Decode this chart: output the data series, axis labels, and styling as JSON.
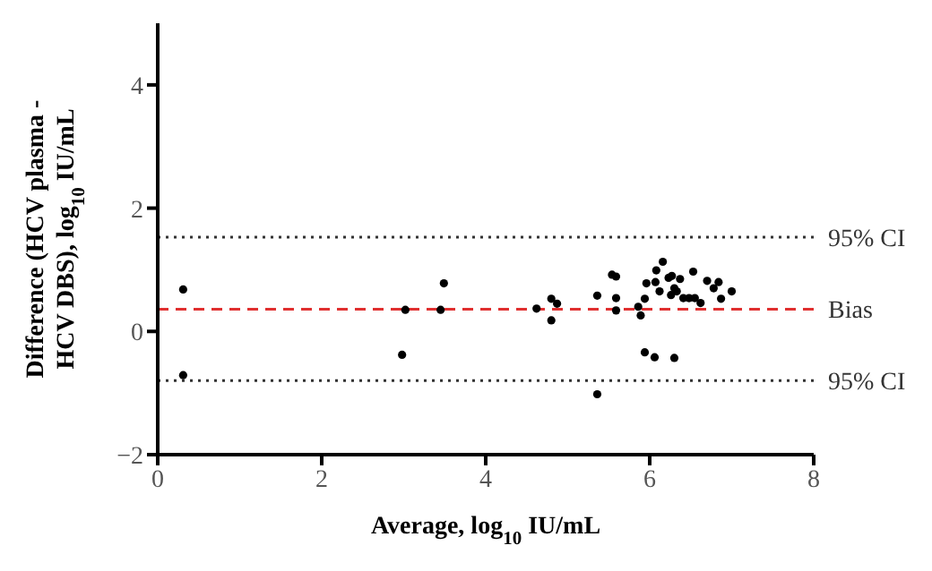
{
  "chart_data": {
    "type": "scatter",
    "xlabel": "Average, log$_{10}$ IU/mL",
    "ylabel": "Difference (HCV plasma - HCV DBS), log$_{10}$ IU/mL",
    "series": [
      {
        "color": "#000000",
        "x": [
          0.31,
          0.31,
          2.98,
          3.02,
          3.45,
          3.49,
          4.62,
          4.8,
          4.8,
          4.87,
          5.36,
          5.36,
          5.54,
          5.59,
          5.59,
          5.59,
          5.86,
          5.89,
          5.94,
          5.94,
          6.06,
          6.3,
          5.96,
          6.08,
          6.07,
          6.16,
          6.12,
          6.23,
          6.27,
          6.37,
          6.3,
          6.26,
          6.33,
          6.41,
          6.48,
          6.53,
          6.55,
          6.62,
          6.7,
          6.78,
          6.84,
          6.87,
          7.0
        ],
        "values": [
          0.68,
          -0.71,
          -0.38,
          0.35,
          0.35,
          0.78,
          0.37,
          0.18,
          0.53,
          0.45,
          0.58,
          -1.02,
          0.92,
          0.89,
          0.54,
          0.34,
          0.4,
          0.26,
          0.53,
          -0.34,
          -0.42,
          -0.43,
          0.78,
          0.99,
          0.8,
          1.13,
          0.65,
          0.87,
          0.9,
          0.85,
          0.7,
          0.59,
          0.65,
          0.54,
          0.54,
          0.97,
          0.54,
          0.46,
          0.82,
          0.7,
          0.8,
          0.53,
          0.65
        ]
      }
    ],
    "xlim": [
      0,
      8
    ],
    "xticks": [
      0,
      2,
      4,
      6,
      8
    ],
    "ylim": [
      -2,
      5
    ],
    "yticks": [
      -2,
      0,
      2,
      4
    ],
    "grid": false,
    "marker": "circle",
    "ref_lines": [
      {
        "axis": "y",
        "value": 1.53,
        "label": "95% CI",
        "color": "#333333",
        "line_style": "dotted"
      },
      {
        "axis": "y",
        "value": 0.36,
        "label": "Bias",
        "color": "#e03030",
        "line_style": "dashed"
      },
      {
        "axis": "y",
        "value": -0.8,
        "label": "95% CI",
        "color": "#333333",
        "line_style": "dotted"
      }
    ]
  }
}
